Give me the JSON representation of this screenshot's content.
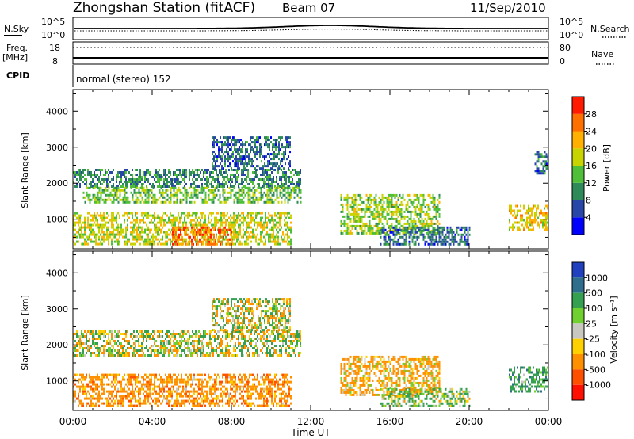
{
  "header": {
    "station": "Zhongshan Station (fitACF)",
    "beam": "Beam 07",
    "date": "11/Sep/2010"
  },
  "status_panel": {
    "nsky_label": "N.Sky",
    "nsky_ticks": [
      "10^5",
      "10^0"
    ],
    "nsearch_label": "N.Search",
    "nsearch_ticks": [
      "10^5",
      "10^0"
    ],
    "freq_label": "Freq.",
    "freq_unit": "[MHz]",
    "freq_ticks": [
      "18",
      "8"
    ],
    "nave_label": "Nave",
    "nave_ticks": [
      "80",
      "0"
    ],
    "cpid_label": "CPID",
    "cpid_value": "normal (stereo) 152"
  },
  "time_axis": {
    "label": "Time UT",
    "ticks": [
      "00:00",
      "04:00",
      "08:00",
      "12:00",
      "16:00",
      "20:00",
      "00:00"
    ],
    "range_hours": [
      0,
      24
    ]
  },
  "chart_data": [
    {
      "type": "heatmap",
      "panel": "power",
      "ylabel": "Slant Range [km]",
      "yticks": [
        "1000",
        "2000",
        "3000",
        "4000"
      ],
      "ylim": [
        180,
        4600
      ],
      "colorbar": {
        "label": "Power [dB]",
        "ticks": [
          "4",
          "8",
          "12",
          "16",
          "20",
          "24",
          "28"
        ],
        "colors": [
          "#0000ff",
          "#2846a8",
          "#2f8a5a",
          "#4fbf3a",
          "#c8d400",
          "#ffb000",
          "#ff7000",
          "#ff1a00"
        ]
      },
      "regions": [
        {
          "t": [
            0.0,
            11.5
          ],
          "r": [
            1900,
            2400
          ],
          "value": 10
        },
        {
          "t": [
            0.5,
            11.5
          ],
          "r": [
            1500,
            1900
          ],
          "value": 14
        },
        {
          "t": [
            0.0,
            11.0
          ],
          "r": [
            300,
            1200
          ],
          "value": 18
        },
        {
          "t": [
            5.0,
            8.0
          ],
          "r": [
            300,
            800
          ],
          "value": 26
        },
        {
          "t": [
            7.0,
            11.0
          ],
          "r": [
            2400,
            3300
          ],
          "value": 8
        },
        {
          "t": [
            13.5,
            18.5
          ],
          "r": [
            600,
            1700
          ],
          "value": 16
        },
        {
          "t": [
            15.5,
            20.0
          ],
          "r": [
            300,
            800
          ],
          "value": 8
        },
        {
          "t": [
            22.0,
            24.0
          ],
          "r": [
            700,
            1400
          ],
          "value": 20
        },
        {
          "t": [
            23.3,
            24.0
          ],
          "r": [
            2300,
            2900
          ],
          "value": 8
        }
      ]
    },
    {
      "type": "heatmap",
      "panel": "velocity",
      "ylabel": "Slant Range [km]",
      "yticks": [
        "1000",
        "2000",
        "3000",
        "4000"
      ],
      "ylim": [
        180,
        4600
      ],
      "colorbar": {
        "label": "Velocity [m s⁻¹]",
        "ticks": [
          "1000",
          "500",
          "100",
          "25",
          "-25",
          "-100",
          "-500",
          "-1000"
        ],
        "colors": [
          "#2040c0",
          "#2e6e8c",
          "#35a050",
          "#6fd030",
          "#c8c8c0",
          "#ffd000",
          "#ff9000",
          "#ff5000",
          "#ff1000"
        ]
      },
      "regions": [
        {
          "t": [
            0.0,
            11.5
          ],
          "r": [
            1700,
            2400
          ],
          "value": 0
        },
        {
          "t": [
            7.0,
            11.0
          ],
          "r": [
            2400,
            3300
          ],
          "value": 0
        },
        {
          "t": [
            0.0,
            11.0
          ],
          "r": [
            300,
            1200
          ],
          "value": -300
        },
        {
          "t": [
            13.5,
            18.5
          ],
          "r": [
            600,
            1700
          ],
          "value": -200
        },
        {
          "t": [
            15.5,
            20.0
          ],
          "r": [
            300,
            800
          ],
          "value": 150
        },
        {
          "t": [
            22.0,
            24.0
          ],
          "r": [
            700,
            1400
          ],
          "value": 300
        }
      ]
    }
  ]
}
